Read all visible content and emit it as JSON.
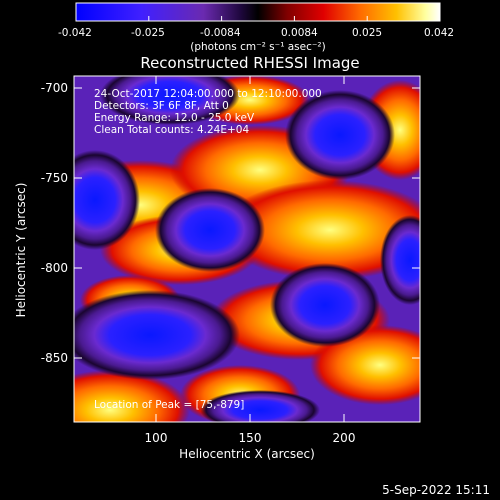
{
  "colorbar": {
    "ticks": [
      "-0.042",
      "-0.025",
      "-0.0084",
      "0.0084",
      "0.025",
      "0.042"
    ],
    "unit_label": "(photons cm⁻² s⁻¹ asec⁻²)",
    "colors": [
      "#0000ff",
      "#3a1aff",
      "#6b2bb8",
      "#2a0a55",
      "#000000",
      "#7a0000",
      "#e00000",
      "#ff6a00",
      "#ffc000",
      "#ffffb0",
      "#ffffff"
    ]
  },
  "plot": {
    "title": "Reconstructed RHESSI Image",
    "xlabel": "Heliocentric X (arcsec)",
    "ylabel": "Heliocentric Y (arcsec)",
    "xticks": [
      "100",
      "150",
      "200"
    ],
    "yticks": [
      "-700",
      "-750",
      "-800",
      "-850"
    ],
    "annotations": [
      "24-Oct-2017 12:04:00.000 to 12:10:00.000",
      "Detectors: 3F 6F 8F, Att 0",
      "Energy Range: 12.0 - 25.0 keV",
      "Clean     Total counts: 4.24E+04"
    ],
    "peak_label": "Location of Peak = [75,-879]"
  },
  "footer": {
    "date": "5-Sep-2022 15:11"
  }
}
